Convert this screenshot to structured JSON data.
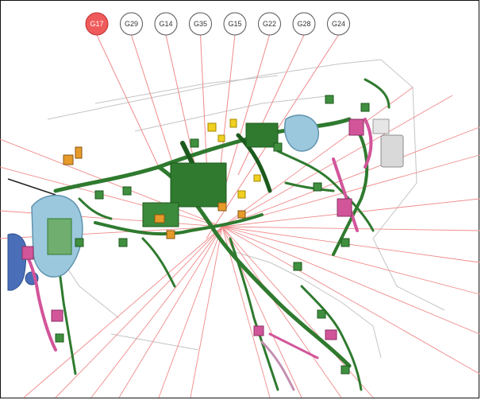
{
  "connectors": [
    {
      "label": "G17",
      "active": true
    },
    {
      "label": "G29",
      "active": false
    },
    {
      "label": "G14",
      "active": false
    },
    {
      "label": "G35",
      "active": false
    },
    {
      "label": "G15",
      "active": false
    },
    {
      "label": "G22",
      "active": false
    },
    {
      "label": "G28",
      "active": false
    },
    {
      "label": "G24",
      "active": false
    }
  ],
  "colors": {
    "active_fill": "#ef5a5a",
    "leader_line": "#f08a8a",
    "harness_green": "#2f7a2f",
    "harness_dark": "#1d5a1d",
    "pink": "#d2559a",
    "light_blue": "#9cc8de",
    "blue": "#4a6fb8",
    "yellow": "#f0d020",
    "orange": "#e59a2a",
    "outline_gray": "#b8b8b8"
  }
}
